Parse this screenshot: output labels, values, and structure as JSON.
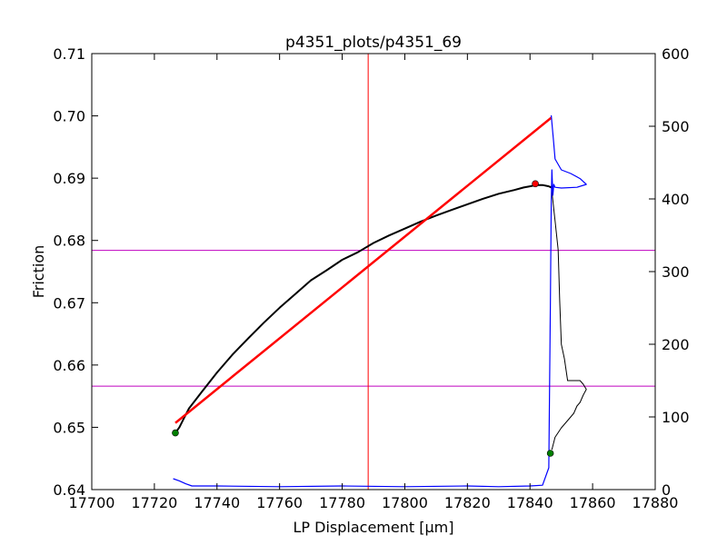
{
  "chart_data": {
    "type": "line",
    "title": "p4351_plots/p4351_69",
    "xlabel": "LP Displacement [μm]",
    "ylabel": "Friction",
    "xlim": [
      17700,
      17880
    ],
    "ylim": [
      0.64,
      0.71
    ],
    "y2lim": [
      0,
      600
    ],
    "xticks": [
      "17700",
      "17720",
      "17740",
      "17760",
      "17780",
      "17800",
      "17820",
      "17840",
      "17860",
      "17880"
    ],
    "yticks": [
      "0.64",
      "0.65",
      "0.66",
      "0.67",
      "0.68",
      "0.69",
      "0.70",
      "0.71"
    ],
    "y2ticks": [
      "0",
      "100",
      "200",
      "300",
      "400",
      "500",
      "600"
    ],
    "grid": false,
    "colors": {
      "friction": "#000000",
      "fit": "#ff0000",
      "vertical_line": "#ff0000",
      "horizontal_lines": "#bf00bf",
      "histogram": "#0000ff",
      "marker_green": "#007f00",
      "marker_red": "#ff0000"
    },
    "series": [
      {
        "role": "friction",
        "x": [
          17726.7,
          17728,
          17729.5,
          17731,
          17735,
          17740,
          17745,
          17750,
          17755,
          17760,
          17765,
          17770,
          17775,
          17780,
          17785,
          17790,
          17795,
          17800,
          17805,
          17810,
          17815,
          17820,
          17825,
          17830,
          17835,
          17838,
          17840,
          17842,
          17844,
          17846,
          17846.8
        ],
        "y": [
          0.6491,
          0.65,
          0.6515,
          0.653,
          0.6556,
          0.6588,
          0.6617,
          0.6643,
          0.6668,
          0.6692,
          0.6714,
          0.6736,
          0.6752,
          0.6769,
          0.6781,
          0.6796,
          0.6808,
          0.6819,
          0.683,
          0.684,
          0.6849,
          0.6858,
          0.6867,
          0.6875,
          0.6881,
          0.6885,
          0.6887,
          0.6889,
          0.6889,
          0.6887,
          0.6885
        ]
      },
      {
        "role": "fit",
        "x": [
          17726.7,
          17846.8
        ],
        "y": [
          0.6507,
          0.6997
        ]
      },
      {
        "role": "unload",
        "axis": "right",
        "x": [
          17846.8,
          17848,
          17849,
          17849.5,
          17850,
          17851,
          17852,
          17853,
          17854,
          17855,
          17856,
          17857,
          17858,
          17857,
          17856,
          17855,
          17854,
          17852,
          17850,
          17848,
          17847
        ],
        "y": [
          418,
          370,
          330,
          260,
          200,
          180,
          150,
          150,
          150,
          150,
          150,
          145,
          138,
          130,
          120,
          115,
          105,
          95,
          85,
          72,
          55
        ]
      },
      {
        "role": "histogram",
        "axis": "right",
        "x": [
          17726,
          17728,
          17730,
          17732,
          17740,
          17760,
          17780,
          17800,
          17820,
          17830,
          17840,
          17844,
          17846,
          17846.5,
          17846.8,
          17847,
          17847.3,
          17847.6,
          17848,
          17850,
          17855,
          17858,
          17856,
          17853,
          17850,
          17848,
          17847.5,
          17847,
          17846.8
        ],
        "y": [
          15,
          12,
          8,
          5,
          5,
          4,
          5,
          4,
          5,
          4,
          5,
          6,
          30,
          250,
          395,
          440,
          405,
          420,
          416,
          415,
          416,
          420,
          428,
          435,
          440,
          455,
          480,
          505,
          515
        ]
      }
    ],
    "vertical_line": {
      "x": 17788.3
    },
    "horizontal_lines": [
      {
        "y": 0.6784
      },
      {
        "y": 0.6566
      }
    ],
    "markers": [
      {
        "x": 17726.7,
        "y": 0.6491,
        "color": "green"
      },
      {
        "x": 17846.5,
        "y2": 50,
        "color": "green"
      },
      {
        "x": 17841.7,
        "y": 0.6891,
        "color": "red"
      }
    ]
  }
}
